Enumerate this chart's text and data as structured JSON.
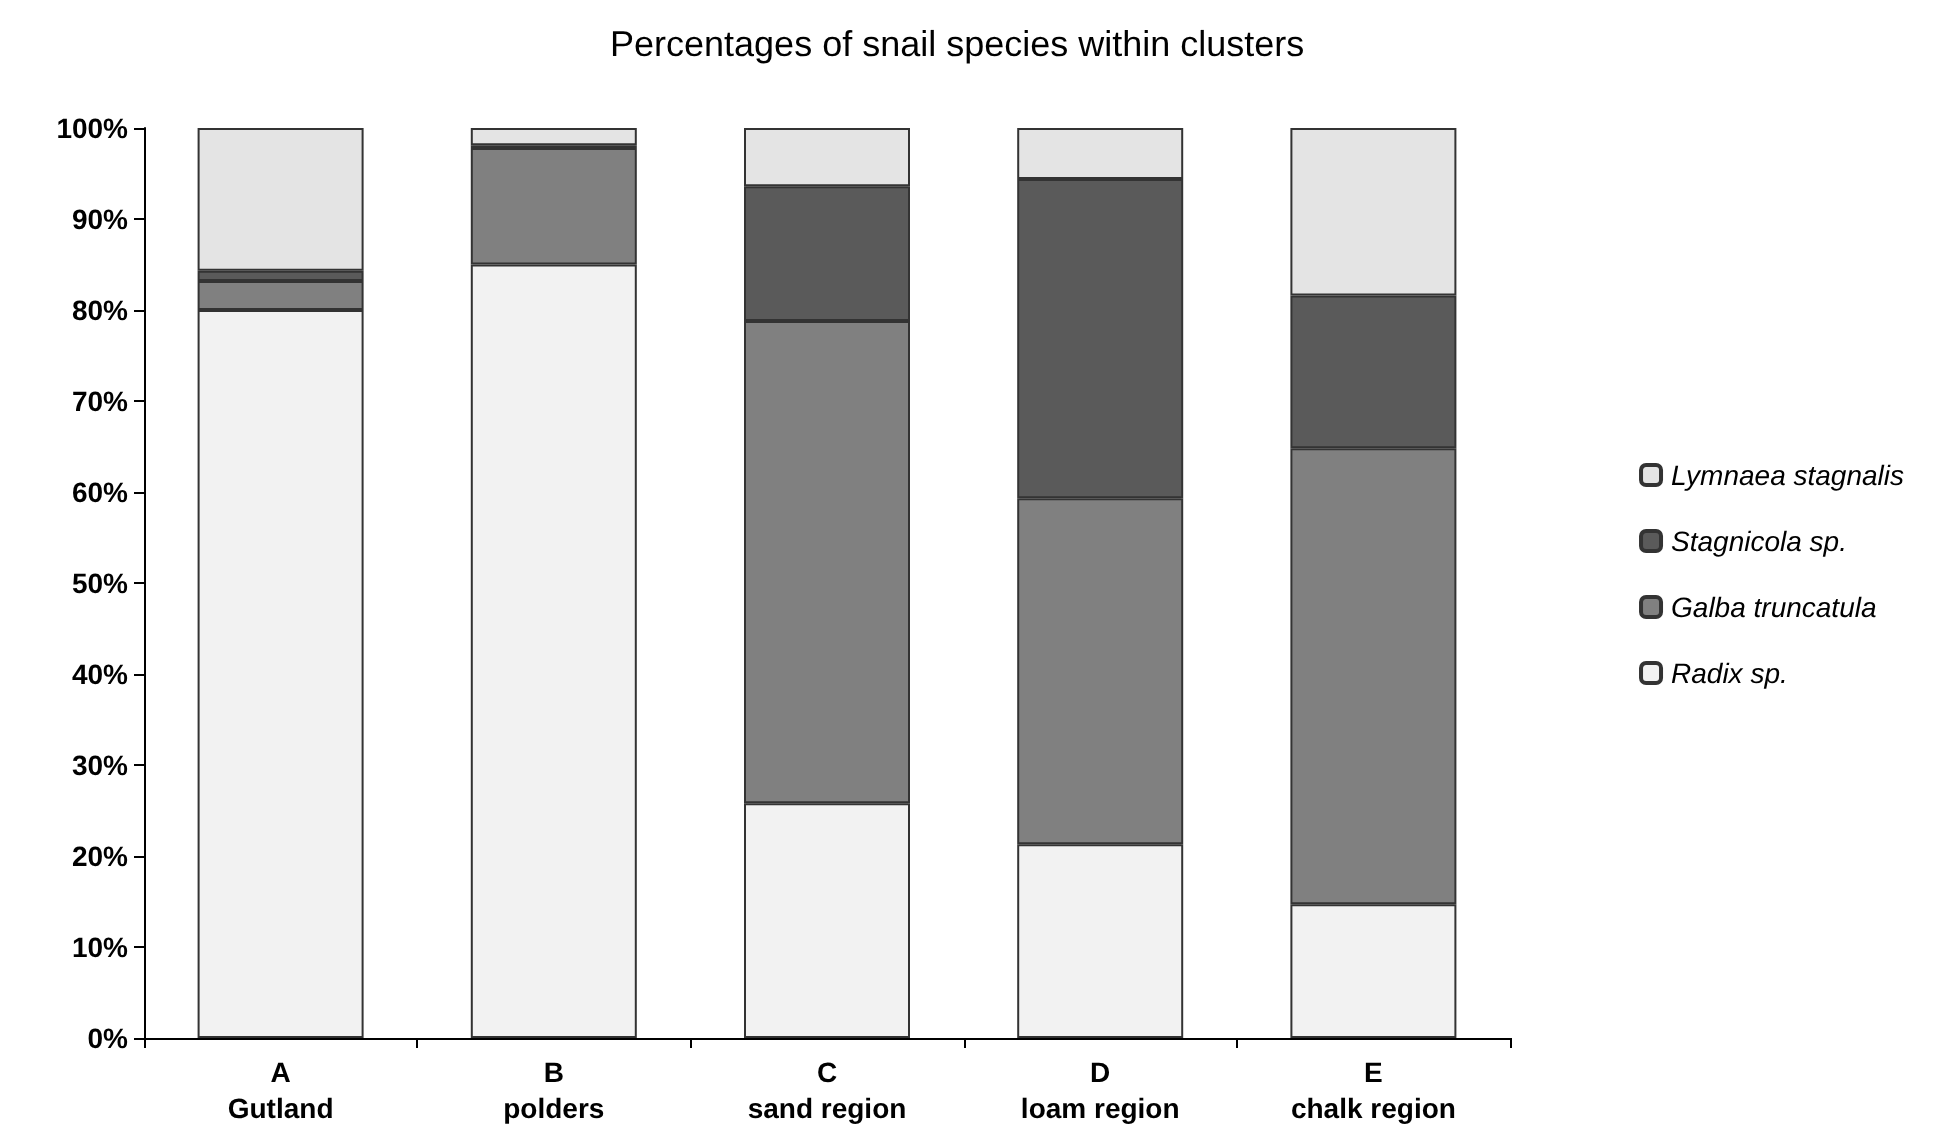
{
  "chart_data": {
    "type": "bar",
    "title": "Percentages of snail species within clusters",
    "categories": [
      "A\nGutland",
      "B\npolders",
      "C\nsand region",
      "D\nloam region",
      "E\nchalk region"
    ],
    "stacked": true,
    "series": [
      {
        "name": "Radix sp.",
        "color": "#f2f2f2",
        "values": [
          80,
          85,
          25.8,
          21.3,
          14.7
        ]
      },
      {
        "name": "Galba truncatula",
        "color": "#808080",
        "values": [
          3.2,
          12.8,
          53,
          38,
          50.1
        ]
      },
      {
        "name": "Stagnicola sp.",
        "color": "#5a5a5a",
        "values": [
          1.1,
          0.3,
          14.8,
          35.1,
          16.8
        ]
      },
      {
        "name": "Lymnaea stagnalis",
        "color": "#e4e4e4",
        "values": [
          15.7,
          1.9,
          6.4,
          5.6,
          18.4
        ]
      }
    ],
    "ylim": [
      0,
      100
    ],
    "yticks": [
      {
        "value": 0,
        "label": "0%"
      },
      {
        "value": 10,
        "label": "10%"
      },
      {
        "value": 20,
        "label": "20%"
      },
      {
        "value": 30,
        "label": "30%"
      },
      {
        "value": 40,
        "label": "40%"
      },
      {
        "value": 50,
        "label": "50%"
      },
      {
        "value": 60,
        "label": "60%"
      },
      {
        "value": 70,
        "label": "70%"
      },
      {
        "value": 80,
        "label": "80%"
      },
      {
        "value": 90,
        "label": "90%"
      },
      {
        "value": 100,
        "label": "100%"
      }
    ],
    "grid": false,
    "legend": "right"
  }
}
